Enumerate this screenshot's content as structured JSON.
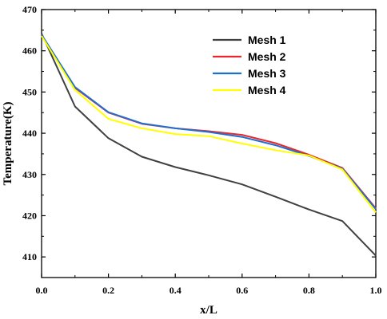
{
  "chart_data": {
    "type": "line",
    "xlabel": "x/L",
    "ylabel": "Temperature(K)",
    "xlim": [
      0.0,
      1.0
    ],
    "ylim": [
      405,
      470
    ],
    "xticks": [
      0.0,
      0.2,
      0.4,
      0.6,
      0.8,
      1.0
    ],
    "xtick_labels": [
      "0.0",
      "0.2",
      "0.4",
      "0.6",
      "0.8",
      "1.0"
    ],
    "yticks": [
      410,
      420,
      430,
      440,
      450,
      460,
      470
    ],
    "ytick_labels": [
      "410",
      "420",
      "430",
      "440",
      "450",
      "460",
      "470"
    ],
    "grid": false,
    "legend_position": "top-right",
    "x": [
      0.0,
      0.1,
      0.2,
      0.3,
      0.4,
      0.5,
      0.6,
      0.7,
      0.8,
      0.9,
      1.0
    ],
    "series": [
      {
        "name": "Mesh 1",
        "color": "#404040",
        "values": [
          464.2,
          446.5,
          438.8,
          434.3,
          431.8,
          429.8,
          427.6,
          424.6,
          421.5,
          418.7,
          410.3
        ]
      },
      {
        "name": "Mesh 2",
        "color": "#e8282c",
        "values": [
          463.8,
          451.0,
          445.0,
          442.3,
          441.2,
          440.5,
          439.6,
          437.6,
          434.8,
          431.6,
          421.8
        ]
      },
      {
        "name": "Mesh 3",
        "color": "#1f6fd1",
        "values": [
          463.9,
          451.2,
          445.1,
          442.4,
          441.2,
          440.3,
          439.1,
          437.1,
          434.5,
          431.4,
          421.6
        ]
      },
      {
        "name": "Mesh 4",
        "color": "#ffff00",
        "values": [
          463.6,
          450.5,
          443.5,
          441.2,
          439.8,
          439.3,
          437.5,
          435.9,
          434.6,
          431.2,
          420.8
        ]
      }
    ]
  }
}
